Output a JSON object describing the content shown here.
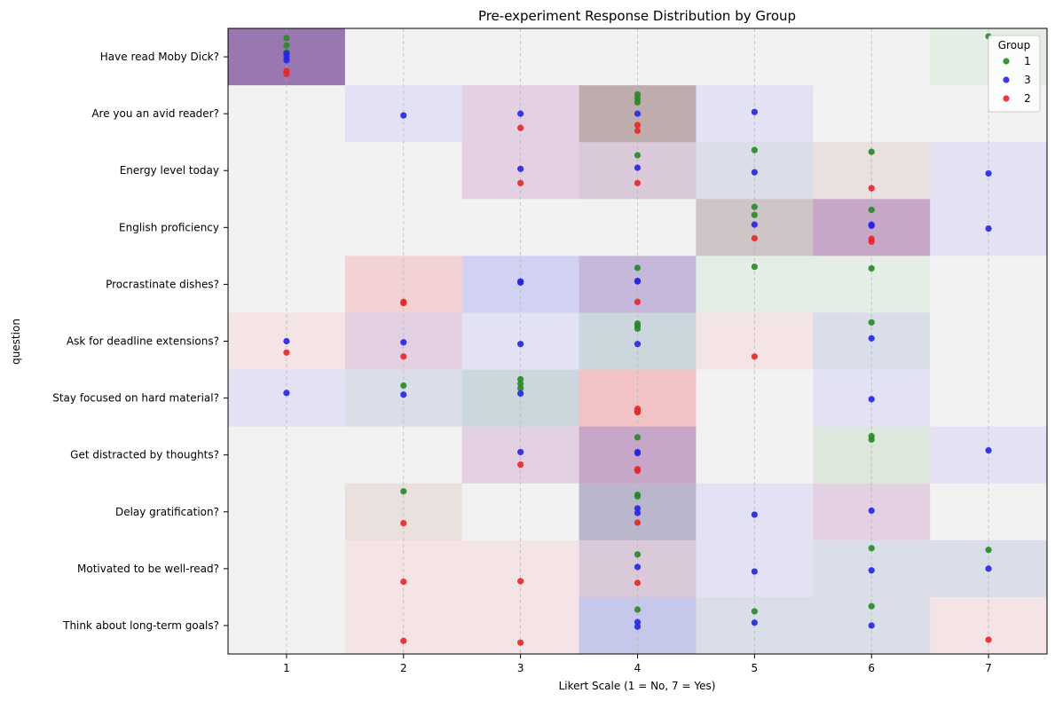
{
  "chart_data": {
    "type": "scatter",
    "title": "Pre-experiment Response Distribution by Group",
    "xlabel": "Likert Scale (1 = No, 7 = Yes)",
    "ylabel": "question",
    "xlim": [
      0.5,
      7.5
    ],
    "x_ticks": [
      "1",
      "2",
      "3",
      "4",
      "5",
      "6",
      "7"
    ],
    "questions": [
      "Have read Moby Dick?",
      "Are you an avid reader?",
      "Energy level today",
      "English proficiency",
      "Procrastinate dishes?",
      "Ask for deadline extensions?",
      "Stay focused on hard material?",
      "Get distracted by thoughts?",
      "Delay gratification?",
      "Motivated to be well-read?",
      "Think about long-term goals?"
    ],
    "grid": "vertical dashed lines at each Likert value",
    "legend": {
      "title": "Group",
      "placement": "upper-right",
      "entries": [
        "1",
        "3",
        "2"
      ]
    },
    "colors": {
      "1": "#228B22",
      "3": "#2222EE",
      "2": "#EE2222",
      "background_tint": "#f2f2f2"
    },
    "series": [
      {
        "name": "1",
        "points": [
          [
            1,
            0,
            -0.33
          ],
          [
            1,
            0,
            -0.2
          ],
          [
            1,
            0,
            -0.08
          ],
          [
            7,
            0,
            -0.36
          ],
          [
            4,
            1,
            -0.34
          ],
          [
            4,
            1,
            -0.27
          ],
          [
            4,
            1,
            -0.2
          ],
          [
            4,
            2,
            -0.27
          ],
          [
            5,
            2,
            -0.36
          ],
          [
            6,
            2,
            -0.33
          ],
          [
            5,
            3,
            -0.36
          ],
          [
            5,
            3,
            -0.22
          ],
          [
            6,
            3,
            -0.31
          ],
          [
            4,
            4,
            -0.29
          ],
          [
            5,
            4,
            -0.31
          ],
          [
            6,
            4,
            -0.28
          ],
          [
            4,
            5,
            -0.31
          ],
          [
            4,
            5,
            -0.27
          ],
          [
            4,
            5,
            -0.22
          ],
          [
            6,
            5,
            -0.33
          ],
          [
            2,
            6,
            -0.22
          ],
          [
            3,
            6,
            -0.33
          ],
          [
            3,
            6,
            -0.25
          ],
          [
            3,
            6,
            -0.17
          ],
          [
            4,
            7,
            -0.31
          ],
          [
            6,
            7,
            -0.33
          ],
          [
            6,
            7,
            -0.27
          ],
          [
            2,
            8,
            -0.36
          ],
          [
            4,
            8,
            -0.3
          ],
          [
            4,
            8,
            -0.27
          ],
          [
            4,
            9,
            -0.25
          ],
          [
            6,
            9,
            -0.36
          ],
          [
            7,
            9,
            -0.33
          ],
          [
            4,
            10,
            -0.28
          ],
          [
            5,
            10,
            -0.25
          ],
          [
            6,
            10,
            -0.34
          ]
        ]
      },
      {
        "name": "3",
        "points": [
          [
            1,
            0,
            -0.06
          ],
          [
            1,
            0,
            0.0
          ],
          [
            1,
            0,
            0.06
          ],
          [
            2,
            1,
            0.03
          ],
          [
            3,
            1,
            -0.0
          ],
          [
            4,
            1,
            0.0
          ],
          [
            5,
            1,
            -0.03
          ],
          [
            3,
            2,
            -0.03
          ],
          [
            4,
            2,
            -0.05
          ],
          [
            5,
            2,
            0.03
          ],
          [
            7,
            2,
            0.05
          ],
          [
            5,
            3,
            -0.05
          ],
          [
            6,
            3,
            -0.05
          ],
          [
            6,
            3,
            -0.03
          ],
          [
            7,
            3,
            0.02
          ],
          [
            3,
            4,
            -0.05
          ],
          [
            3,
            4,
            -0.03
          ],
          [
            4,
            4,
            -0.06
          ],
          [
            4,
            4,
            -0.05
          ],
          [
            1,
            5,
            0.0
          ],
          [
            2,
            5,
            0.02
          ],
          [
            3,
            5,
            0.05
          ],
          [
            4,
            5,
            0.05
          ],
          [
            6,
            5,
            -0.05
          ],
          [
            1,
            6,
            -0.09
          ],
          [
            2,
            6,
            -0.06
          ],
          [
            3,
            6,
            -0.08
          ],
          [
            6,
            6,
            0.02
          ],
          [
            3,
            7,
            -0.05
          ],
          [
            4,
            7,
            -0.05
          ],
          [
            4,
            7,
            -0.03
          ],
          [
            7,
            7,
            -0.08
          ],
          [
            4,
            8,
            -0.06
          ],
          [
            4,
            8,
            0.02
          ],
          [
            5,
            8,
            0.05
          ],
          [
            6,
            8,
            -0.02
          ],
          [
            4,
            9,
            -0.03
          ],
          [
            5,
            9,
            0.05
          ],
          [
            6,
            9,
            0.03
          ],
          [
            7,
            9,
            0.0
          ],
          [
            4,
            10,
            -0.06
          ],
          [
            4,
            10,
            0.02
          ],
          [
            5,
            10,
            -0.05
          ],
          [
            6,
            10,
            0.0
          ]
        ]
      },
      {
        "name": "2",
        "points": [
          [
            1,
            0,
            0.25
          ],
          [
            1,
            0,
            0.3
          ],
          [
            3,
            1,
            0.25
          ],
          [
            4,
            1,
            0.2
          ],
          [
            4,
            1,
            0.3
          ],
          [
            3,
            2,
            0.22
          ],
          [
            4,
            2,
            0.22
          ],
          [
            6,
            2,
            0.31
          ],
          [
            5,
            3,
            0.19
          ],
          [
            6,
            3,
            0.2
          ],
          [
            6,
            3,
            0.25
          ],
          [
            2,
            4,
            0.31
          ],
          [
            2,
            4,
            0.33
          ],
          [
            4,
            4,
            0.31
          ],
          [
            1,
            5,
            0.2
          ],
          [
            2,
            5,
            0.27
          ],
          [
            5,
            5,
            0.27
          ],
          [
            4,
            6,
            0.19
          ],
          [
            4,
            6,
            0.25
          ],
          [
            4,
            6,
            0.23
          ],
          [
            3,
            7,
            0.17
          ],
          [
            4,
            7,
            0.25
          ],
          [
            4,
            7,
            0.28
          ],
          [
            2,
            8,
            0.2
          ],
          [
            4,
            8,
            0.19
          ],
          [
            2,
            9,
            0.23
          ],
          [
            3,
            9,
            0.22
          ],
          [
            4,
            9,
            0.25
          ],
          [
            2,
            10,
            0.27
          ],
          [
            3,
            10,
            0.3
          ],
          [
            7,
            10,
            0.25
          ]
        ]
      }
    ],
    "cells": [
      [
        1,
        0,
        "#9977b0"
      ],
      [
        2,
        0,
        "#f2f2f2"
      ],
      [
        3,
        0,
        "#f2f2f2"
      ],
      [
        4,
        0,
        "#f2f2f2"
      ],
      [
        5,
        0,
        "#f2f2f2"
      ],
      [
        6,
        0,
        "#f2f2f2"
      ],
      [
        7,
        0,
        "#e5eee4"
      ],
      [
        1,
        1,
        "#f2f2f2"
      ],
      [
        2,
        1,
        "#e2e2f4"
      ],
      [
        3,
        1,
        "#e3d1e3"
      ],
      [
        4,
        1,
        "#bfadae"
      ],
      [
        5,
        1,
        "#e2e2f4"
      ],
      [
        6,
        1,
        "#f2f2f2"
      ],
      [
        7,
        1,
        "#f2f2f2"
      ],
      [
        1,
        2,
        "#f2f2f2"
      ],
      [
        2,
        2,
        "#f2f2f2"
      ],
      [
        3,
        2,
        "#e3d1e3"
      ],
      [
        4,
        2,
        "#dac9d8"
      ],
      [
        5,
        2,
        "#d9dee9"
      ],
      [
        6,
        2,
        "#eae0dd"
      ],
      [
        7,
        2,
        "#e2e2f4"
      ],
      [
        1,
        3,
        "#f2f2f2"
      ],
      [
        2,
        3,
        "#f2f2f2"
      ],
      [
        3,
        3,
        "#f2f2f2"
      ],
      [
        4,
        3,
        "#f2f2f2"
      ],
      [
        5,
        3,
        "#cfc4c6"
      ],
      [
        6,
        3,
        "#c7a7c8"
      ],
      [
        7,
        3,
        "#e2e2f4"
      ],
      [
        1,
        4,
        "#f2f2f2"
      ],
      [
        2,
        4,
        "#f3d2d3"
      ],
      [
        3,
        4,
        "#d1d1f3"
      ],
      [
        4,
        4,
        "#c5b8da"
      ],
      [
        5,
        4,
        "#e5eee4"
      ],
      [
        6,
        4,
        "#e5eee4"
      ],
      [
        7,
        4,
        "#f2f2f2"
      ],
      [
        1,
        5,
        "#f4e4e5"
      ],
      [
        2,
        5,
        "#e3d1e3"
      ],
      [
        3,
        5,
        "#e2e2f4"
      ],
      [
        4,
        5,
        "#ccd7dd"
      ],
      [
        5,
        5,
        "#f4e4e5"
      ],
      [
        6,
        5,
        "#d9dee9"
      ],
      [
        7,
        5,
        "#f2f2f2"
      ],
      [
        1,
        6,
        "#e2e2f4"
      ],
      [
        2,
        6,
        "#d9dee9"
      ],
      [
        3,
        6,
        "#ccd7dd"
      ],
      [
        4,
        6,
        "#f2c2c4"
      ],
      [
        5,
        6,
        "#f2f2f2"
      ],
      [
        6,
        6,
        "#e2e2f4"
      ],
      [
        7,
        6,
        "#f2f2f2"
      ],
      [
        1,
        7,
        "#f2f2f2"
      ],
      [
        2,
        7,
        "#f2f2f2"
      ],
      [
        3,
        7,
        "#e3d1e3"
      ],
      [
        4,
        7,
        "#c7a7c8"
      ],
      [
        5,
        7,
        "#f2f2f2"
      ],
      [
        6,
        7,
        "#dde7dc"
      ],
      [
        7,
        7,
        "#e2e2f4"
      ],
      [
        1,
        8,
        "#f2f2f2"
      ],
      [
        2,
        8,
        "#eae0dd"
      ],
      [
        3,
        8,
        "#f2f2f2"
      ],
      [
        4,
        8,
        "#bab6cc"
      ],
      [
        5,
        8,
        "#e2e2f4"
      ],
      [
        6,
        8,
        "#e3d1e3"
      ],
      [
        7,
        8,
        "#f2f2f2"
      ],
      [
        1,
        9,
        "#f2f2f2"
      ],
      [
        2,
        9,
        "#f4e4e5"
      ],
      [
        3,
        9,
        "#f4e4e5"
      ],
      [
        4,
        9,
        "#dac9d8"
      ],
      [
        5,
        9,
        "#e2e2f4"
      ],
      [
        6,
        9,
        "#d9dee9"
      ],
      [
        7,
        9,
        "#d9dee9"
      ],
      [
        1,
        10,
        "#f2f2f2"
      ],
      [
        2,
        10,
        "#f4e4e5"
      ],
      [
        3,
        10,
        "#f4e4e5"
      ],
      [
        4,
        10,
        "#c5c8ea"
      ],
      [
        5,
        10,
        "#d9dee9"
      ],
      [
        6,
        10,
        "#d9dee9"
      ],
      [
        7,
        10,
        "#f4e4e5"
      ]
    ]
  }
}
